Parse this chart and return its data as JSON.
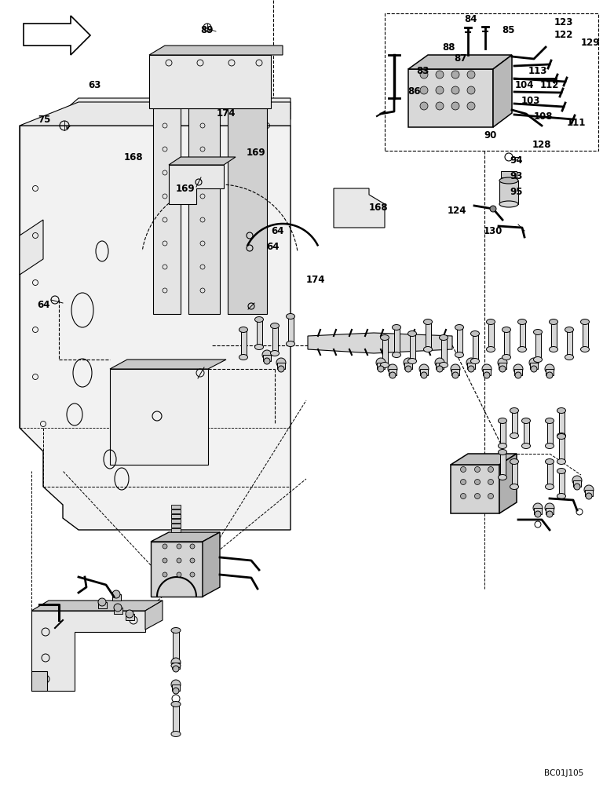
{
  "background_color": "#ffffff",
  "image_code": "BC01J105",
  "line_color": "#000000",
  "gray_fill": "#e8e8e8",
  "dark_gray": "#c8c8c8",
  "lw": 0.8,
  "fs_label": 8.5,
  "fs_code": 7.5,
  "labels": [
    [
      "84",
      600,
      975
    ],
    [
      "85",
      648,
      962
    ],
    [
      "123",
      718,
      972
    ],
    [
      "122",
      718,
      955
    ],
    [
      "129",
      752,
      945
    ],
    [
      "88",
      572,
      940
    ],
    [
      "87",
      586,
      926
    ],
    [
      "83",
      538,
      910
    ],
    [
      "113",
      685,
      910
    ],
    [
      "104",
      668,
      892
    ],
    [
      "112",
      700,
      892
    ],
    [
      "86",
      528,
      884
    ],
    [
      "103",
      676,
      872
    ],
    [
      "108",
      692,
      852
    ],
    [
      "111",
      734,
      844
    ],
    [
      "90",
      625,
      828
    ],
    [
      "128",
      690,
      816
    ],
    [
      "89",
      264,
      962
    ],
    [
      "63",
      120,
      892
    ],
    [
      "75",
      56,
      848
    ],
    [
      "168",
      170,
      800
    ],
    [
      "174",
      288,
      856
    ],
    [
      "169",
      326,
      806
    ],
    [
      "169",
      236,
      760
    ],
    [
      "168",
      482,
      736
    ],
    [
      "64",
      354,
      706
    ],
    [
      "64",
      348,
      686
    ],
    [
      "64",
      56,
      612
    ],
    [
      "174",
      402,
      644
    ],
    [
      "94",
      658,
      796
    ],
    [
      "93",
      658,
      776
    ],
    [
      "95",
      658,
      755
    ],
    [
      "124",
      582,
      732
    ],
    [
      "130",
      628,
      706
    ]
  ]
}
